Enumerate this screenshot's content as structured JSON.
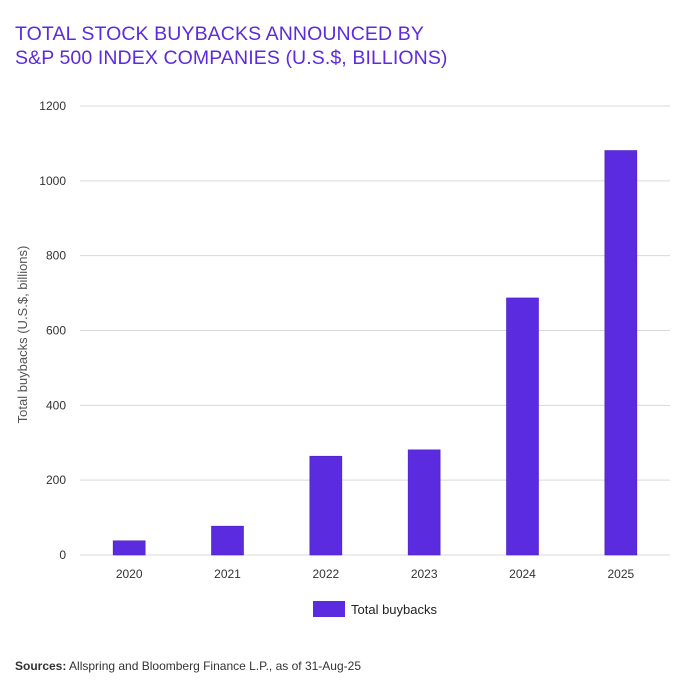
{
  "title_lines": [
    "TOTAL STOCK BUYBACKS ANNOUNCED BY",
    "S&P 500 INDEX COMPANIES (U.S.$, BILLIONS)"
  ],
  "source": {
    "label": "Sources:",
    "text": " Allspring and Bloomberg Finance L.P., as of 31-Aug-25"
  },
  "colors": {
    "bar": "#5b2be0",
    "bar_edge": "#4a1fc4",
    "title": "#5b2be0",
    "grid": "#d9d9d9"
  },
  "chart_data": {
    "type": "bar",
    "categories": [
      "2020",
      "2021",
      "2022",
      "2023",
      "2024",
      "2025"
    ],
    "series": [
      {
        "name": "Total buybacks",
        "values": [
          38,
          77,
          264,
          281,
          687,
          1081
        ]
      }
    ],
    "xlabel": "",
    "ylabel": "Total buybacks (U.S.$, billions)",
    "ylim": [
      0,
      1200
    ],
    "yticks": [
      0,
      200,
      400,
      600,
      800,
      1000,
      1200
    ],
    "grid": true,
    "legend": "bottom-center"
  }
}
